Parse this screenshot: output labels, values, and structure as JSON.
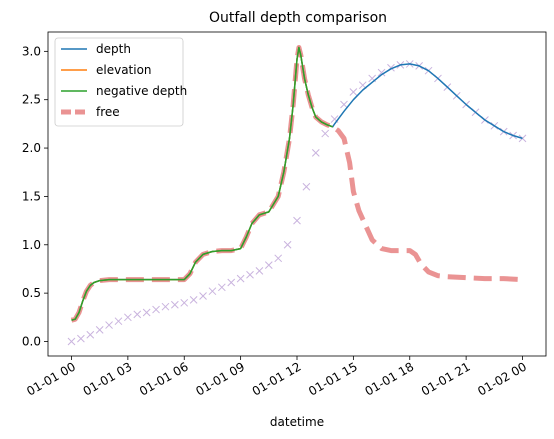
{
  "chart_data": {
    "type": "line",
    "title": "Outfall depth comparison",
    "xlabel": "datetime",
    "ylabel": "",
    "x_unit": "hours",
    "xlim": [
      -1.25,
      25.25
    ],
    "ylim": [
      -0.15,
      3.2
    ],
    "x_ticks": [
      {
        "value": 0,
        "label": "01-01 00"
      },
      {
        "value": 3,
        "label": "01-01 03"
      },
      {
        "value": 6,
        "label": "01-01 06"
      },
      {
        "value": 9,
        "label": "01-01 09"
      },
      {
        "value": 12,
        "label": "01-01 12"
      },
      {
        "value": 15,
        "label": "01-01 15"
      },
      {
        "value": 18,
        "label": "01-01 18"
      },
      {
        "value": 21,
        "label": "01-01 21"
      },
      {
        "value": 24,
        "label": "01-02 00"
      }
    ],
    "y_ticks": [
      {
        "value": 0.0,
        "label": "0.0"
      },
      {
        "value": 0.5,
        "label": "0.5"
      },
      {
        "value": 1.0,
        "label": "1.0"
      },
      {
        "value": 1.5,
        "label": "1.5"
      },
      {
        "value": 2.0,
        "label": "2.0"
      },
      {
        "value": 2.5,
        "label": "2.5"
      },
      {
        "value": 3.0,
        "label": "3.0"
      }
    ],
    "grid": false,
    "legend_position": "top-left",
    "series": [
      {
        "name": "depth",
        "color": "#1f77b4",
        "style": "solid",
        "x": [
          0,
          0.2,
          0.4,
          0.6,
          0.8,
          1.0,
          1.2,
          1.5,
          2,
          3,
          4,
          5,
          6,
          6.3,
          6.6,
          7,
          7.5,
          8,
          8.5,
          9,
          9.3,
          9.6,
          10,
          10.5,
          11,
          11.3,
          11.6,
          11.8,
          12,
          12.1,
          12.2,
          12.4,
          12.6,
          12.8,
          13,
          13.3,
          13.6,
          13.9,
          14,
          14.5,
          15,
          15.5,
          16,
          16.5,
          17,
          17.5,
          18,
          18.5,
          19,
          19.5,
          20,
          20.5,
          21,
          21.5,
          22,
          22.5,
          23,
          23.5,
          24
        ],
        "y": [
          0.22,
          0.23,
          0.3,
          0.42,
          0.52,
          0.58,
          0.61,
          0.63,
          0.64,
          0.64,
          0.64,
          0.64,
          0.64,
          0.7,
          0.82,
          0.9,
          0.93,
          0.94,
          0.94,
          0.96,
          1.08,
          1.22,
          1.31,
          1.34,
          1.5,
          1.75,
          2.1,
          2.45,
          2.92,
          3.04,
          2.96,
          2.72,
          2.55,
          2.42,
          2.32,
          2.27,
          2.24,
          2.22,
          2.25,
          2.38,
          2.5,
          2.6,
          2.68,
          2.76,
          2.82,
          2.86,
          2.87,
          2.85,
          2.8,
          2.72,
          2.63,
          2.54,
          2.45,
          2.37,
          2.29,
          2.23,
          2.17,
          2.13,
          2.1
        ]
      },
      {
        "name": "elevation",
        "color": "#ff7f0e",
        "style": "solid",
        "x": [
          0,
          0.2,
          0.4,
          0.6,
          0.8,
          1.0,
          1.2,
          1.5,
          2,
          3,
          4,
          5,
          6,
          6.3,
          6.6,
          7,
          7.5,
          8,
          8.5,
          9,
          9.3,
          9.6,
          10,
          10.5,
          11,
          11.3,
          11.6,
          11.8,
          12,
          12.1,
          12.2,
          12.4,
          12.6,
          12.8,
          13,
          13.3,
          13.6,
          13.9
        ],
        "y": [
          0.22,
          0.23,
          0.3,
          0.42,
          0.52,
          0.58,
          0.61,
          0.63,
          0.64,
          0.64,
          0.64,
          0.64,
          0.64,
          0.7,
          0.82,
          0.9,
          0.93,
          0.94,
          0.94,
          0.96,
          1.08,
          1.22,
          1.31,
          1.34,
          1.5,
          1.75,
          2.1,
          2.45,
          2.92,
          3.04,
          2.96,
          2.72,
          2.55,
          2.42,
          2.32,
          2.27,
          2.24,
          2.22
        ]
      },
      {
        "name": "negative depth",
        "color": "#2ca02c",
        "style": "solid",
        "x": [
          0,
          0.2,
          0.4,
          0.6,
          0.8,
          1.0,
          1.2,
          1.5,
          2,
          3,
          4,
          5,
          6,
          6.3,
          6.6,
          7,
          7.5,
          8,
          8.5,
          9,
          9.3,
          9.6,
          10,
          10.5,
          11,
          11.3,
          11.6,
          11.8,
          12,
          12.1,
          12.2,
          12.4,
          12.6,
          12.8,
          13,
          13.3,
          13.6,
          13.9
        ],
        "y": [
          0.22,
          0.23,
          0.3,
          0.42,
          0.52,
          0.58,
          0.61,
          0.63,
          0.64,
          0.64,
          0.64,
          0.64,
          0.64,
          0.7,
          0.82,
          0.9,
          0.93,
          0.94,
          0.94,
          0.96,
          1.08,
          1.22,
          1.31,
          1.34,
          1.5,
          1.75,
          2.1,
          2.45,
          2.92,
          3.04,
          2.96,
          2.72,
          2.55,
          2.42,
          2.32,
          2.27,
          2.24,
          2.22
        ]
      },
      {
        "name": "free",
        "color": "#d62728",
        "style": "dashed",
        "alpha": 0.5,
        "x": [
          0,
          0.2,
          0.4,
          0.6,
          0.8,
          1.0,
          1.2,
          1.5,
          2,
          3,
          4,
          5,
          6,
          6.3,
          6.6,
          7,
          7.5,
          8,
          8.5,
          9,
          9.3,
          9.6,
          10,
          10.5,
          11,
          11.3,
          11.6,
          11.8,
          12,
          12.1,
          12.2,
          12.4,
          12.6,
          12.8,
          13,
          13.3,
          13.6,
          13.9,
          14.2,
          14.5,
          14.8,
          15,
          15.3,
          15.6,
          16,
          16.5,
          17,
          17.5,
          18,
          18.3,
          18.6,
          19,
          19.5,
          20,
          21,
          22,
          23,
          24
        ],
        "y": [
          0.22,
          0.23,
          0.3,
          0.42,
          0.52,
          0.58,
          0.61,
          0.63,
          0.64,
          0.64,
          0.64,
          0.64,
          0.64,
          0.7,
          0.82,
          0.9,
          0.93,
          0.94,
          0.94,
          0.96,
          1.08,
          1.22,
          1.31,
          1.34,
          1.5,
          1.75,
          2.1,
          2.45,
          2.92,
          3.04,
          2.96,
          2.72,
          2.55,
          2.42,
          2.32,
          2.27,
          2.24,
          2.22,
          2.18,
          2.1,
          1.85,
          1.55,
          1.35,
          1.22,
          1.05,
          0.96,
          0.94,
          0.94,
          0.94,
          0.9,
          0.8,
          0.72,
          0.68,
          0.67,
          0.66,
          0.65,
          0.65,
          0.64
        ]
      },
      {
        "name": "",
        "color": "#9467bd",
        "style": "marker-x",
        "alpha": 0.5,
        "x": [
          0,
          0.5,
          1,
          1.5,
          2,
          2.5,
          3,
          3.5,
          4,
          4.5,
          5,
          5.5,
          6,
          6.5,
          7,
          7.5,
          8,
          8.5,
          9,
          9.5,
          10,
          10.5,
          11,
          11.5,
          12,
          12.5,
          13,
          13.5,
          14,
          14.5,
          15,
          15.5,
          16,
          16.5,
          17,
          17.5,
          18,
          18.5,
          19,
          19.5,
          20,
          20.5,
          21,
          21.5,
          22,
          22.5,
          23,
          23.5,
          24
        ],
        "y": [
          0.0,
          0.03,
          0.07,
          0.12,
          0.17,
          0.21,
          0.25,
          0.28,
          0.3,
          0.33,
          0.36,
          0.38,
          0.4,
          0.43,
          0.47,
          0.52,
          0.56,
          0.61,
          0.65,
          0.69,
          0.73,
          0.79,
          0.86,
          1.0,
          1.25,
          1.6,
          1.95,
          2.15,
          2.3,
          2.45,
          2.58,
          2.65,
          2.72,
          2.78,
          2.83,
          2.86,
          2.87,
          2.85,
          2.8,
          2.72,
          2.63,
          2.54,
          2.45,
          2.37,
          2.29,
          2.23,
          2.17,
          2.13,
          2.1
        ]
      }
    ]
  }
}
